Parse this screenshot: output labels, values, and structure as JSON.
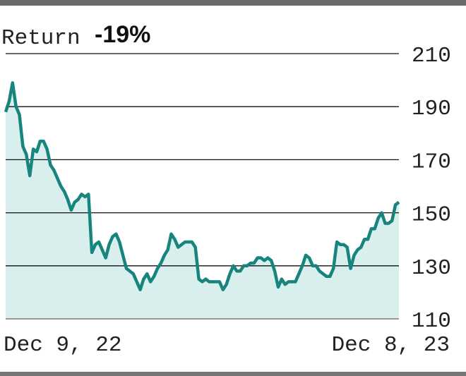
{
  "chart_data": {
    "type": "line",
    "title": "Return",
    "change": "-19%",
    "categories": [
      "Dec 9, 22",
      null,
      null,
      null,
      null,
      null,
      null,
      null,
      null,
      null,
      null,
      null,
      null,
      null,
      null,
      null,
      null,
      null,
      null,
      null,
      null,
      null,
      null,
      null,
      null,
      null,
      null,
      null,
      null,
      null,
      null,
      null,
      null,
      null,
      null,
      null,
      null,
      null,
      null,
      null,
      null,
      null,
      null,
      null,
      null,
      null,
      null,
      null,
      null,
      null,
      null,
      null,
      null,
      null,
      null,
      null,
      null,
      null,
      null,
      null,
      null,
      null,
      null,
      null,
      null,
      null,
      null,
      null,
      null,
      null,
      null,
      null,
      null,
      null,
      null,
      null,
      null,
      null,
      null,
      null,
      null,
      null,
      null,
      null,
      null,
      null,
      null,
      null,
      null,
      null,
      null,
      null,
      null,
      null,
      null,
      null,
      null,
      null,
      null,
      null,
      null,
      null,
      null,
      null,
      null,
      null,
      null,
      null,
      null,
      null,
      null,
      null,
      null,
      null,
      "Dec 8, 23"
    ],
    "values": [
      188,
      192,
      199,
      190,
      187,
      175,
      172,
      164,
      174,
      173,
      177,
      177,
      174,
      168,
      166,
      163,
      160,
      158,
      155,
      151,
      154,
      155,
      157,
      156,
      157,
      135,
      138,
      139,
      136,
      133,
      138,
      141,
      142,
      139,
      134,
      129,
      128,
      127,
      124,
      121,
      125,
      127,
      124,
      126,
      129,
      131,
      134,
      136,
      142,
      140,
      137,
      138,
      139,
      139,
      139,
      137,
      125,
      124,
      125,
      124,
      124,
      124,
      124,
      121,
      123,
      127,
      130,
      128,
      128,
      130,
      130,
      131,
      131,
      133,
      133,
      132,
      133,
      132,
      128,
      122,
      125,
      123,
      124,
      124,
      124,
      127,
      130,
      134,
      133,
      130,
      130,
      128,
      127,
      126,
      126,
      129,
      139,
      138,
      138,
      137,
      129,
      134,
      136,
      137,
      140,
      140,
      144,
      144,
      148,
      150,
      146,
      146,
      147,
      153,
      154
    ],
    "color": "#17847e",
    "fill_color": "#d8efed",
    "ylim": [
      110,
      210
    ],
    "yticks": [
      110,
      130,
      150,
      170,
      190,
      210
    ],
    "grid": true
  }
}
